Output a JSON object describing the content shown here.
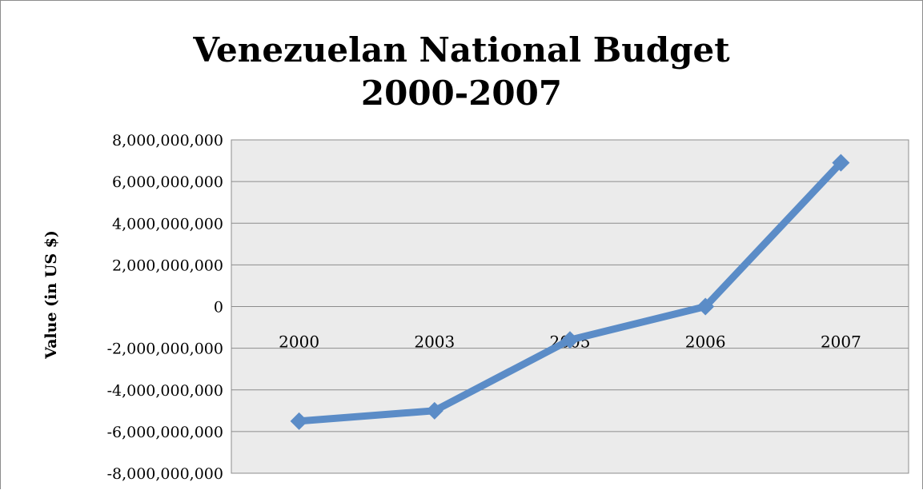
{
  "chart_data": {
    "type": "line",
    "title": "Venezuelan National Budget",
    "subtitle": "2000-2007",
    "xlabel": "",
    "ylabel": "Value (in US $)",
    "categories": [
      "2000",
      "2003",
      "2005",
      "2006",
      "2007"
    ],
    "series": [
      {
        "values": [
          -5500000000,
          -5000000000,
          -1600000000,
          0,
          6900000000
        ]
      }
    ],
    "ylim": [
      -8000000000,
      8000000000
    ],
    "yticks": [
      8000000000,
      6000000000,
      4000000000,
      2000000000,
      0,
      -2000000000,
      -4000000000,
      -6000000000,
      -8000000000
    ],
    "ytick_labels": [
      "8,000,000,000",
      "6,000,000,000",
      "4,000,000,000",
      "2,000,000,000",
      "0",
      "-2,000,000,000",
      "-4,000,000,000",
      "-6,000,000,000",
      "-8,000,000,000"
    ],
    "grid": true,
    "legend": "none",
    "marker": "diamond",
    "colors": {
      "series": "#5b8cc7",
      "plot_background": "#ebebeb",
      "gridline": "#8c8c8c"
    }
  }
}
